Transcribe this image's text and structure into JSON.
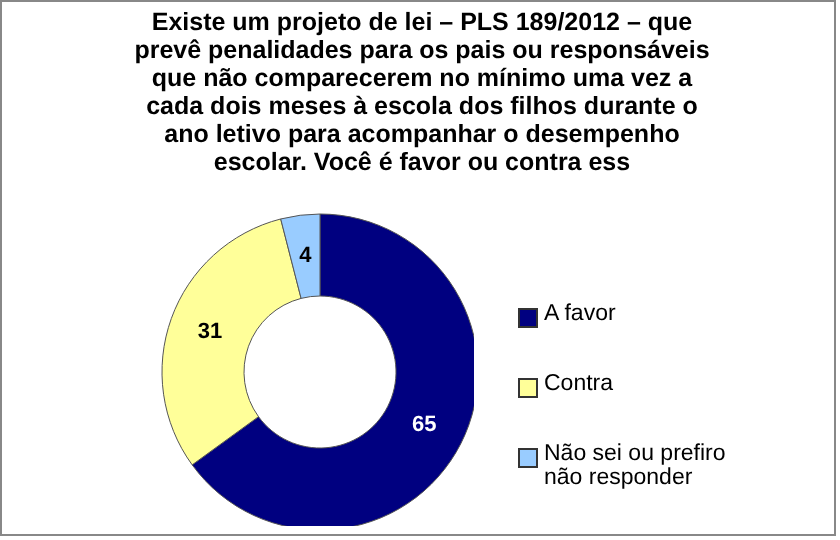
{
  "chart_data": {
    "type": "donut",
    "title": "Existe um projeto de lei – PLS 189/2012 – que prevê penalidades para os pais ou responsáveis que não comparecerem no mínimo uma vez a cada dois meses à escola dos filhos durante o ano letivo para acompanhar o desempenho escolar. Você é favor ou contra ess",
    "categories": [
      "A favor",
      "Contra",
      "Não sei ou prefiro não responder"
    ],
    "values": [
      65,
      31,
      4
    ],
    "colors": [
      "#000080",
      "#ffff99",
      "#99ccff"
    ],
    "data_labels": true,
    "legend": "right"
  }
}
